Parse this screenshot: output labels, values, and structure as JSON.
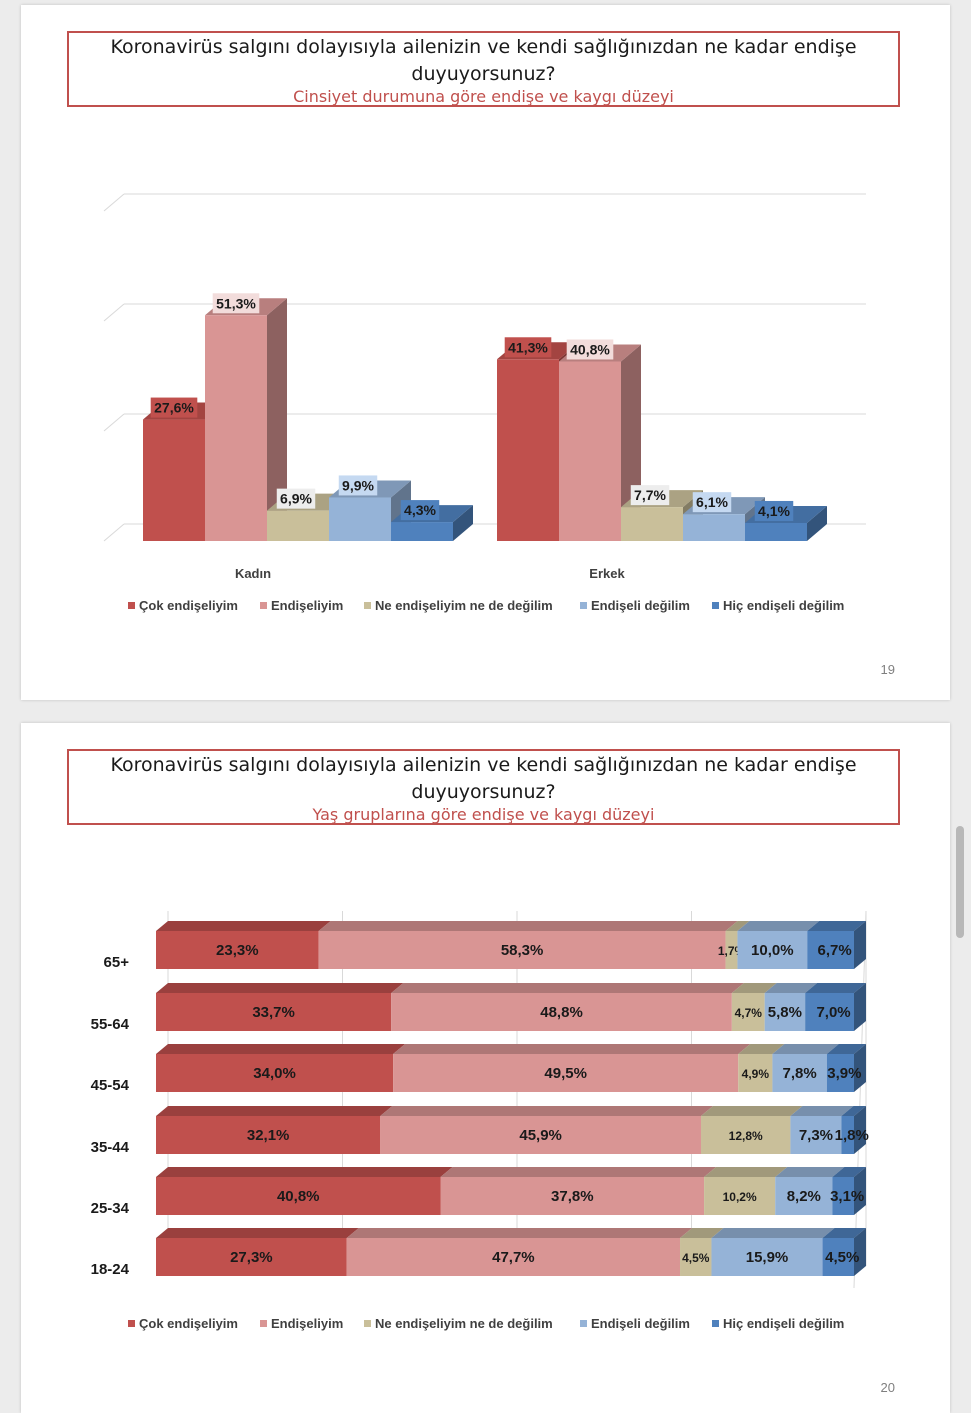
{
  "scrollbar": "scrollbar",
  "slides": [
    {
      "title": "Koronavirüs salgını dolayısıyla ailenizin ve kendi sağlığınızdan ne kadar endişe duyuyorsunuz?",
      "subtitle": "Cinsiyet durumuna göre endişe ve kaygı düzeyi",
      "page": "19"
    },
    {
      "title": "Koronavirüs salgını dolayısıyla ailenizin ve kendi sağlığınızdan ne kadar endişe duyuyorsunuz?",
      "subtitle": "Yaş gruplarına göre endişe ve kaygı düzeyi",
      "page": "20"
    }
  ],
  "chart_data": [
    {
      "type": "bar",
      "title": "Cinsiyet durumuna göre endişe ve kaygı düzeyi",
      "categories": [
        "Kadın",
        "Erkek"
      ],
      "series": [
        {
          "name": "Çok endişeliyim",
          "values": [
            27.6,
            41.3
          ],
          "labels": [
            "27,6%",
            "41,3%"
          ],
          "color": "#c0504d"
        },
        {
          "name": "Endişeliyim",
          "values": [
            51.3,
            40.8
          ],
          "labels": [
            "51,3%",
            "40,8%"
          ],
          "color": "#d99594"
        },
        {
          "name": "Ne endişeliyim ne de değilim",
          "values": [
            6.9,
            7.7
          ],
          "labels": [
            "6,9%",
            "7,7%"
          ],
          "color": "#c9bf9a"
        },
        {
          "name": "Endişeli değilim",
          "values": [
            9.9,
            6.1
          ],
          "labels": [
            "9,9%",
            "6,1%"
          ],
          "color": "#95b3d7"
        },
        {
          "name": "Hiç endişeli değilim",
          "values": [
            4.3,
            4.1
          ],
          "labels": [
            "4,3%",
            "4,1%"
          ],
          "color": "#4f81bd"
        }
      ],
      "ylim": [
        0,
        80
      ],
      "grid": true,
      "legend": "bottom"
    },
    {
      "type": "bar",
      "stacked": true,
      "orientation": "horizontal",
      "title": "Yaş gruplarına göre endişe ve kaygı düzeyi",
      "categories": [
        "65+",
        "55-64",
        "45-54",
        "35-44",
        "25-34",
        "18-24"
      ],
      "series": [
        {
          "name": "Çok endişeliyim",
          "values": [
            23.3,
            33.7,
            34.0,
            32.1,
            40.8,
            27.3
          ],
          "labels": [
            "23,3%",
            "33,7%",
            "34,0%",
            "32,1%",
            "40,8%",
            "27,3%"
          ],
          "color": "#c0504d"
        },
        {
          "name": "Endişeliyim",
          "values": [
            58.3,
            48.8,
            49.5,
            45.9,
            37.8,
            47.7
          ],
          "labels": [
            "58,3%",
            "48,8%",
            "49,5%",
            "45,9%",
            "37,8%",
            "47,7%"
          ],
          "color": "#d99594"
        },
        {
          "name": "Ne endişeliyim ne de değilim",
          "values": [
            1.7,
            4.7,
            4.9,
            12.8,
            10.2,
            4.5
          ],
          "labels": [
            "1,7%",
            "4,7%",
            "4,9%",
            "12,8%",
            "10,2%",
            "4,5%"
          ],
          "color": "#c9bf9a"
        },
        {
          "name": "Endişeli değilim",
          "values": [
            10.0,
            5.8,
            7.8,
            7.3,
            8.2,
            15.9
          ],
          "labels": [
            "10,0%",
            "5,8%",
            "7,8%",
            "7,3%",
            "8,2%",
            "15,9%"
          ],
          "color": "#95b3d7"
        },
        {
          "name": "Hiç endişeli değilim",
          "values": [
            6.7,
            7.0,
            3.9,
            1.8,
            3.1,
            4.5
          ],
          "labels": [
            "6,7%",
            "7,0%",
            "3,9%",
            "1,8%",
            "3,1%",
            "4,5%"
          ],
          "color": "#4f81bd"
        }
      ],
      "xlim": [
        0,
        100
      ],
      "grid": true,
      "legend": "bottom"
    }
  ]
}
